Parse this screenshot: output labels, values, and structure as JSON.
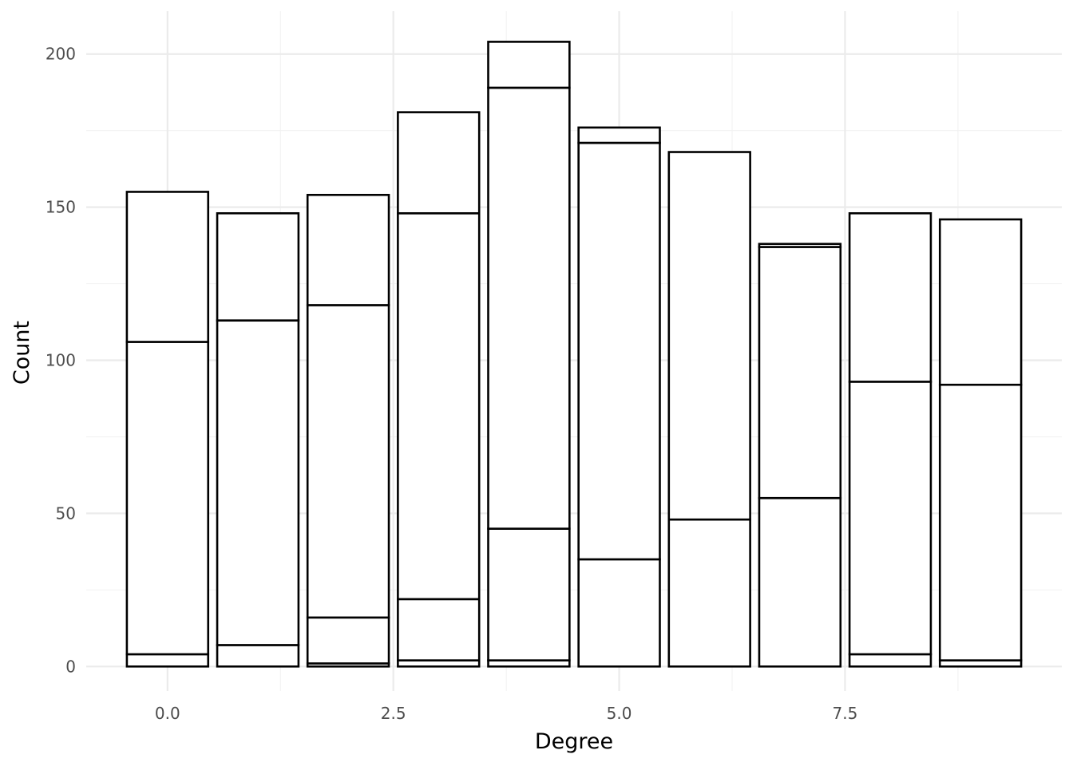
{
  "chart_data": {
    "type": "bar",
    "stacked": true,
    "title": "",
    "xlabel": "Degree",
    "ylabel": "Count",
    "xlim": [
      -0.9,
      9.9
    ],
    "ylim": [
      -8,
      214
    ],
    "x_ticks": [
      {
        "value": 0,
        "label": "0.0"
      },
      {
        "value": 2.5,
        "label": "2.5"
      },
      {
        "value": 5,
        "label": "5.0"
      },
      {
        "value": 7.5,
        "label": "7.5"
      }
    ],
    "y_ticks": [
      {
        "value": 0,
        "label": "0"
      },
      {
        "value": 50,
        "label": "50"
      },
      {
        "value": 100,
        "label": "100"
      },
      {
        "value": 150,
        "label": "150"
      },
      {
        "value": 200,
        "label": "200"
      }
    ],
    "x_minor_ticks": [
      1.25,
      3.75,
      6.25,
      8.75
    ],
    "y_minor_ticks": [
      25,
      75,
      125,
      175
    ],
    "grid": true,
    "legend": "none",
    "bar_width": 0.9,
    "bars": [
      {
        "x": 0,
        "segments": [
          4,
          102,
          49
        ]
      },
      {
        "x": 1,
        "segments": [
          7,
          106,
          35
        ]
      },
      {
        "x": 2,
        "segments": [
          1,
          15,
          102,
          36
        ]
      },
      {
        "x": 3,
        "segments": [
          2,
          20,
          126,
          33
        ]
      },
      {
        "x": 4,
        "segments": [
          2,
          43,
          144,
          15
        ]
      },
      {
        "x": 5,
        "segments": [
          35,
          136,
          5
        ]
      },
      {
        "x": 6,
        "segments": [
          48,
          120
        ]
      },
      {
        "x": 7,
        "segments": [
          55,
          82,
          1
        ]
      },
      {
        "x": 8,
        "segments": [
          4,
          89,
          55
        ]
      },
      {
        "x": 9,
        "segments": [
          2,
          90,
          54
        ]
      }
    ]
  }
}
